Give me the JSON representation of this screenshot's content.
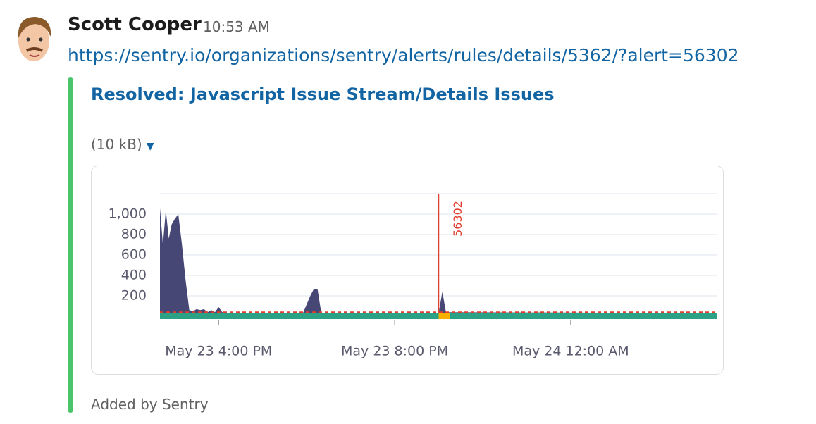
{
  "message": {
    "author": "Scott Cooper",
    "time": "10:53 AM",
    "link": "https://sentry.io/organizations/sentry/alerts/rules/details/5362/?alert=56302",
    "attachment": {
      "title": "Resolved: Javascript Issue Stream/Details Issues",
      "size": "(10 kB)",
      "footer": "Added by Sentry"
    }
  },
  "chart_data": {
    "type": "area",
    "color": "#464775",
    "x": [
      "May 23 2:40 PM",
      "May 23 2:44 PM",
      "May 23 2:48 PM",
      "May 23 2:52 PM",
      "May 23 2:56 PM",
      "May 23 3:00 PM",
      "May 23 3:05 PM",
      "May 23 3:10 PM",
      "May 23 3:15 PM",
      "May 23 3:20 PM",
      "May 23 3:25 PM",
      "May 23 3:30 PM",
      "May 23 3:35 PM",
      "May 23 3:40 PM",
      "May 23 3:45 PM",
      "May 23 3:50 PM",
      "May 23 3:55 PM",
      "May 23 4:00 PM",
      "May 23 4:05 PM",
      "May 23 4:15 PM",
      "May 23 5:55 PM",
      "May 23 6:05 PM",
      "May 23 6:10 PM",
      "May 23 6:15 PM",
      "May 23 6:20 PM",
      "May 23 9:00 PM",
      "May 23 9:05 PM",
      "May 23 9:10 PM",
      "May 24 3:20 AM"
    ],
    "values": [
      1060,
      700,
      1040,
      760,
      900,
      950,
      1000,
      700,
      350,
      60,
      50,
      70,
      60,
      70,
      40,
      60,
      40,
      90,
      40,
      30,
      30,
      200,
      270,
      260,
      30,
      30,
      240,
      40,
      30
    ],
    "xlim": [
      "May 23 2:40 PM",
      "May 24 3:20 AM"
    ],
    "xticks": [
      "May 23 4:00 PM",
      "May 23 8:00 PM",
      "May 24 12:00 AM"
    ],
    "ylim": [
      0,
      1200
    ],
    "yticks": [
      200,
      400,
      600,
      800,
      {
        "value": 1000,
        "label": "1,000"
      }
    ],
    "grid": true,
    "threshold": 40,
    "annotation": {
      "x": "May 23 9:00 PM",
      "end": "May 23 9:15 PM",
      "label": "56302"
    }
  }
}
